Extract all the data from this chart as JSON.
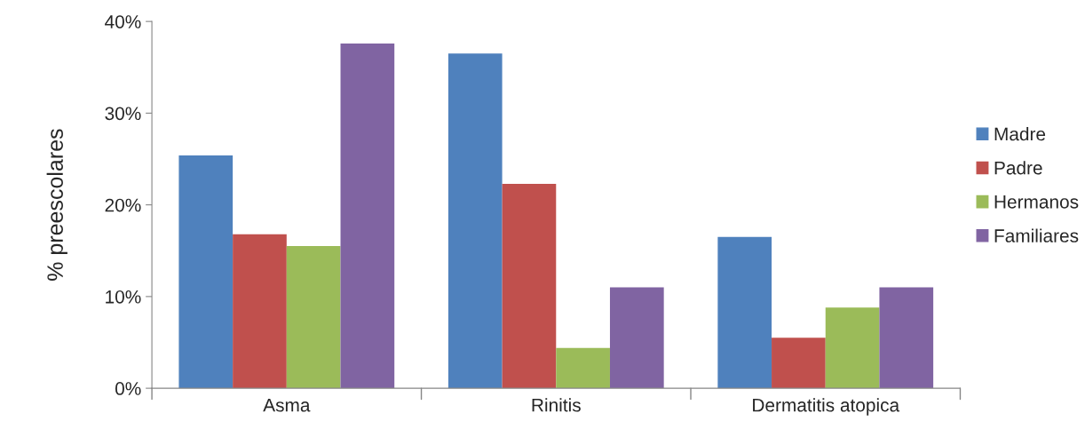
{
  "chart_data": {
    "type": "bar",
    "ylabel": "% preescolares",
    "categories": [
      "Asma",
      "Rinitis",
      "Dermatitis atopica"
    ],
    "series": [
      {
        "name": "Madre",
        "color": "#4f81bd",
        "values": [
          25.4,
          36.5,
          16.5
        ]
      },
      {
        "name": "Padre",
        "color": "#c0504d",
        "values": [
          16.8,
          22.3,
          5.5
        ]
      },
      {
        "name": "Hermanos",
        "color": "#9bbb59",
        "values": [
          15.5,
          4.4,
          8.8
        ]
      },
      {
        "name": "Familiares",
        "color": "#8064a2",
        "values": [
          37.6,
          11.0,
          11.0
        ]
      }
    ],
    "ylim": [
      0,
      40
    ],
    "yticks": [
      {
        "value": 0,
        "label": "0%"
      },
      {
        "value": 10,
        "label": "10%"
      },
      {
        "value": 20,
        "label": "20%"
      },
      {
        "value": 30,
        "label": "30%"
      },
      {
        "value": 40,
        "label": "40%"
      }
    ],
    "grid": false,
    "legend": "right"
  }
}
